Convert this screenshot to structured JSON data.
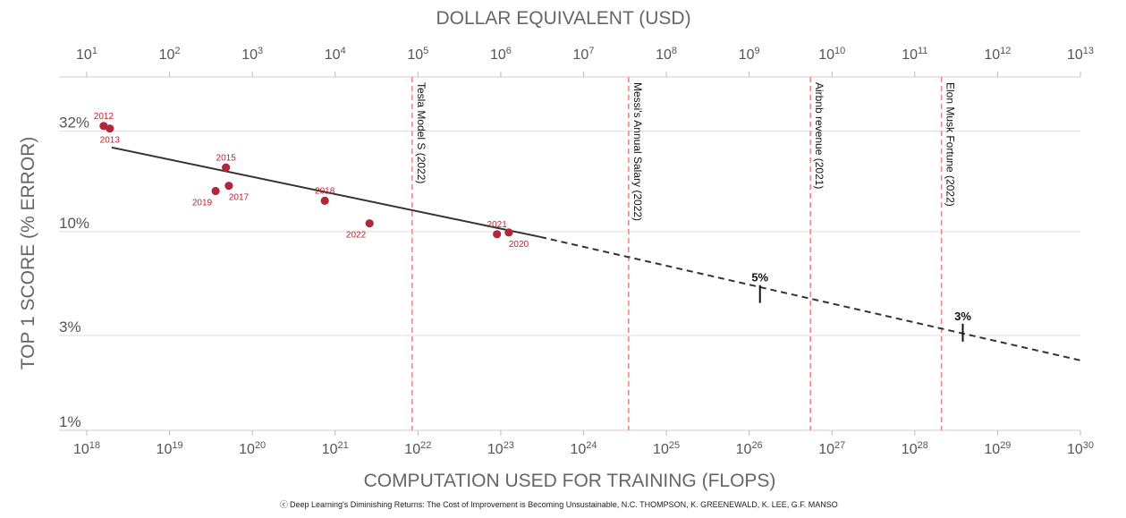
{
  "chart_data": {
    "type": "scatter",
    "title": "",
    "xlabel": "COMPUTATION USED FOR TRAINING (FLOPS)",
    "x2label": "DOLLAR EQUIVALENT (USD)",
    "ylabel": "TOP 1 SCORE (% ERROR)",
    "x_scale": "log",
    "y_scale": "log",
    "xlim": [
      1e+18,
      1e+30
    ],
    "x2lim": [
      10,
      10000000000000.0
    ],
    "ylim": [
      1,
      60
    ],
    "x_ticks": [
      {
        "base": "10",
        "exp": "18",
        "value": 1e+18
      },
      {
        "base": "10",
        "exp": "19",
        "value": 1e+19
      },
      {
        "base": "10",
        "exp": "20",
        "value": 1e+20
      },
      {
        "base": "10",
        "exp": "21",
        "value": 1e+21
      },
      {
        "base": "10",
        "exp": "22",
        "value": 1e+22
      },
      {
        "base": "10",
        "exp": "23",
        "value": 1e+23
      },
      {
        "base": "10",
        "exp": "24",
        "value": 1e+24
      },
      {
        "base": "10",
        "exp": "25",
        "value": 1e+25
      },
      {
        "base": "10",
        "exp": "26",
        "value": 1e+26
      },
      {
        "base": "10",
        "exp": "27",
        "value": 1e+27
      },
      {
        "base": "10",
        "exp": "28",
        "value": 1e+28
      },
      {
        "base": "10",
        "exp": "29",
        "value": 1e+29
      },
      {
        "base": "10",
        "exp": "30",
        "value": 1e+30
      }
    ],
    "x2_ticks": [
      {
        "base": "10",
        "exp": "1",
        "value": 10
      },
      {
        "base": "10",
        "exp": "2",
        "value": 100
      },
      {
        "base": "10",
        "exp": "3",
        "value": 1000
      },
      {
        "base": "10",
        "exp": "4",
        "value": 10000
      },
      {
        "base": "10",
        "exp": "5",
        "value": 100000
      },
      {
        "base": "10",
        "exp": "6",
        "value": 1000000
      },
      {
        "base": "10",
        "exp": "7",
        "value": 10000000
      },
      {
        "base": "10",
        "exp": "8",
        "value": 100000000
      },
      {
        "base": "10",
        "exp": "9",
        "value": 1000000000
      },
      {
        "base": "10",
        "exp": "10",
        "value": 10000000000
      },
      {
        "base": "10",
        "exp": "11",
        "value": 100000000000
      },
      {
        "base": "10",
        "exp": "12",
        "value": 1000000000000
      },
      {
        "base": "10",
        "exp": "13",
        "value": 10000000000000
      }
    ],
    "y_ticks": [
      {
        "label": "32%",
        "value": 32
      },
      {
        "label": "10%",
        "value": 10
      },
      {
        "label": "3%",
        "value": 3
      },
      {
        "label": "1%",
        "value": 1
      }
    ],
    "grid": true,
    "points": [
      {
        "year": "2012",
        "x": 1.6e+18,
        "y": 34,
        "label_pos": "above"
      },
      {
        "year": "2013",
        "x": 1.9e+18,
        "y": 33,
        "label_pos": "below"
      },
      {
        "year": "2015",
        "x": 4.8e+19,
        "y": 21,
        "label_pos": "above"
      },
      {
        "year": "2017",
        "x": 5.2e+19,
        "y": 17,
        "label_pos": "below-right"
      },
      {
        "year": "2019",
        "x": 3.6e+19,
        "y": 16,
        "label_pos": "below-left"
      },
      {
        "year": "2018",
        "x": 7.5e+20,
        "y": 14.3,
        "label_pos": "above"
      },
      {
        "year": "2022",
        "x": 2.6e+21,
        "y": 11,
        "label_pos": "below-left"
      },
      {
        "year": "2021",
        "x": 9e+22,
        "y": 9.7,
        "label_pos": "above"
      },
      {
        "year": "2020",
        "x": 1.25e+23,
        "y": 9.9,
        "label_pos": "below-right"
      }
    ],
    "fit_line": {
      "solid": {
        "x": [
          2e+18,
          3e+23
        ],
        "y": [
          26.5,
          9.4
        ]
      },
      "dashed": {
        "x": [
          3e+23,
          1e+30
        ],
        "y": [
          9.4,
          2.25
        ]
      }
    },
    "reference_lines": [
      {
        "label": "Tesla Model S (2022)",
        "x": 8.5e+21
      },
      {
        "label": "Messi's Annual Salary (2022)",
        "x": 3.5e+24
      },
      {
        "label": "Airbnb revenue (2021)",
        "x": 5.5e+26
      },
      {
        "label": "Elon Musk Fortune (2022)",
        "x": 2.1e+28
      }
    ],
    "projections": [
      {
        "label": "5%",
        "x": 1.35e+26,
        "y": 4.85
      },
      {
        "label": "3%",
        "x": 3.8e+28,
        "y": 3.1
      }
    ],
    "colors": {
      "point": "#b0283a",
      "year_label": "#c0202f",
      "fit_line": "#333333",
      "reference_line": "#f08a8a",
      "grid": "#dddddd",
      "axis_text": "#666666"
    }
  },
  "footer": {
    "text": "Deep Learning's Diminishing Returns: The Cost of Improvement is Becoming Unsustainable, N.C. THOMPSON, K. GREENEWALD, K. LEE, G.F. MANSO"
  }
}
